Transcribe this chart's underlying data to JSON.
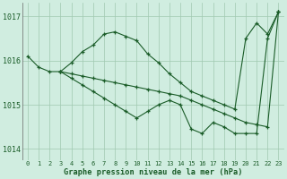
{
  "bg_color": "#d0ede0",
  "grid_color": "#a0c8b0",
  "line_color": "#1a5c28",
  "xlabel": "Graphe pression niveau de la mer (hPa)",
  "xlim": [
    -0.5,
    23.5
  ],
  "ylim": [
    1013.75,
    1017.3
  ],
  "yticks": [
    1014,
    1015,
    1016,
    1017
  ],
  "xticks": [
    0,
    1,
    2,
    3,
    4,
    5,
    6,
    7,
    8,
    9,
    10,
    11,
    12,
    13,
    14,
    15,
    16,
    17,
    18,
    19,
    20,
    21,
    22,
    23
  ],
  "line1_x": [
    0,
    1,
    2,
    3,
    4,
    5,
    6,
    7,
    8,
    9,
    10,
    11,
    12,
    13,
    14,
    15,
    16,
    17,
    18,
    19,
    20,
    21,
    22,
    23
  ],
  "line1_y": [
    1016.1,
    1015.85,
    1015.75,
    1015.75,
    1015.95,
    1016.2,
    1016.35,
    1016.6,
    1016.65,
    1016.55,
    1016.45,
    1016.15,
    1015.95,
    1015.7,
    1015.5,
    1015.3,
    1015.2,
    1015.1,
    1015.0,
    1014.9,
    1016.5,
    1016.85,
    1016.6,
    1017.1
  ],
  "line2_x": [
    3,
    4,
    5,
    6,
    7,
    8,
    9,
    10,
    11,
    12,
    13,
    14,
    15,
    16,
    17,
    18,
    19,
    20,
    21,
    22,
    23
  ],
  "line2_y": [
    1015.75,
    1015.6,
    1015.45,
    1015.3,
    1015.15,
    1015.0,
    1014.85,
    1014.7,
    1014.85,
    1015.0,
    1015.1,
    1015.0,
    1014.45,
    1014.35,
    1014.6,
    1014.5,
    1014.35,
    1014.35,
    1014.35,
    1016.5,
    1017.1
  ],
  "line3_x": [
    3,
    4,
    5,
    6,
    7,
    8,
    9,
    10,
    11,
    12,
    13,
    14,
    15,
    16,
    17,
    18,
    19,
    20,
    21,
    22,
    23
  ],
  "line3_y": [
    1015.75,
    1015.7,
    1015.65,
    1015.6,
    1015.55,
    1015.5,
    1015.45,
    1015.4,
    1015.35,
    1015.3,
    1015.25,
    1015.2,
    1015.1,
    1015.0,
    1014.9,
    1014.8,
    1014.7,
    1014.6,
    1014.55,
    1014.5,
    1017.1
  ]
}
